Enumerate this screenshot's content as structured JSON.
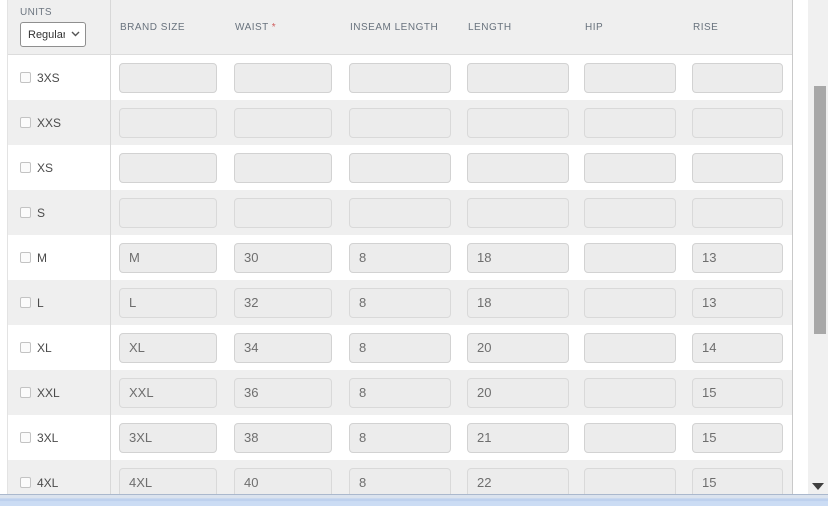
{
  "table": {
    "units_label": "UNITS",
    "units_value": "Regular",
    "units_options": [
      "Regular"
    ],
    "required_marker": "*",
    "columns": [
      {
        "id": "brand_size",
        "label": "BRAND SIZE",
        "required": false
      },
      {
        "id": "waist",
        "label": "WAIST",
        "required": true
      },
      {
        "id": "inseam_length",
        "label": "INSEAM LENGTH",
        "required": false
      },
      {
        "id": "length",
        "label": "LENGTH",
        "required": false
      },
      {
        "id": "hip",
        "label": "HIP",
        "required": false
      },
      {
        "id": "rise",
        "label": "RISE",
        "required": false
      }
    ],
    "rows": [
      {
        "size": "3XS",
        "checked": false,
        "values": [
          "",
          "",
          "",
          "",
          "",
          ""
        ]
      },
      {
        "size": "XXS",
        "checked": false,
        "values": [
          "",
          "",
          "",
          "",
          "",
          ""
        ]
      },
      {
        "size": "XS",
        "checked": false,
        "values": [
          "",
          "",
          "",
          "",
          "",
          ""
        ]
      },
      {
        "size": "S",
        "checked": false,
        "values": [
          "",
          "",
          "",
          "",
          "",
          ""
        ]
      },
      {
        "size": "M",
        "checked": false,
        "values": [
          "M",
          "30",
          "8",
          "18",
          "",
          "13"
        ]
      },
      {
        "size": "L",
        "checked": false,
        "values": [
          "L",
          "32",
          "8",
          "18",
          "",
          "13"
        ]
      },
      {
        "size": "XL",
        "checked": false,
        "values": [
          "XL",
          "34",
          "8",
          "20",
          "",
          "14"
        ]
      },
      {
        "size": "XXL",
        "checked": false,
        "values": [
          "XXL",
          "36",
          "8",
          "20",
          "",
          "15"
        ]
      },
      {
        "size": "3XL",
        "checked": false,
        "values": [
          "3XL",
          "38",
          "8",
          "21",
          "",
          "15"
        ]
      },
      {
        "size": "4XL",
        "checked": false,
        "values": [
          "4XL",
          "40",
          "8",
          "22",
          "",
          "15"
        ]
      }
    ]
  },
  "colors": {
    "required_asterisk": "#cf5c5c",
    "header_text": "#68727d",
    "input_fill": "#ececec",
    "alt_row": "#efefef",
    "vscroll_thumb": "#a8a8a8",
    "hscroll_fill": "#c8d9f2"
  }
}
